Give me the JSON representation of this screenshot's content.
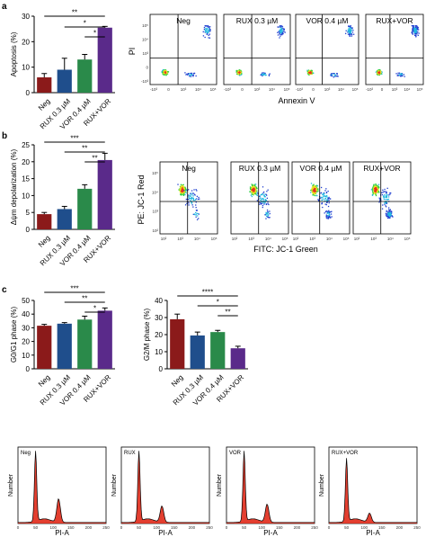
{
  "panel_labels": [
    "a",
    "b",
    "c"
  ],
  "chart_data": [
    {
      "id": "apoptosis",
      "type": "bar",
      "categories": [
        "Neg",
        "RUX 0.3 µM",
        "VOR 0.4 µM",
        "RUX+VOR"
      ],
      "values": [
        6,
        9,
        13,
        25.5
      ],
      "errors": [
        1.5,
        4.5,
        2,
        0.5
      ],
      "colors": [
        "#8b1a1a",
        "#1f4e8c",
        "#2a8a4a",
        "#5a2a8a"
      ],
      "ylabel": "Apoptosis (%)",
      "ylim": [
        0,
        30
      ],
      "yticks": [
        "0",
        "10",
        "20",
        "30"
      ],
      "significance": [
        "**",
        "*",
        "*"
      ]
    },
    {
      "id": "depolarization",
      "type": "bar",
      "categories": [
        "Neg",
        "RUX 0.3 µM",
        "VOR 0.4 µM",
        "RUX+VOR"
      ],
      "values": [
        4.5,
        6,
        12,
        20.5
      ],
      "errors": [
        0.5,
        0.8,
        1.2,
        2
      ],
      "colors": [
        "#8b1a1a",
        "#1f4e8c",
        "#2a8a4a",
        "#5a2a8a"
      ],
      "ylabel": "Δψm depolarization (%)",
      "ylim": [
        0,
        25
      ],
      "yticks": [
        "0",
        "5",
        "10",
        "15",
        "20",
        "25"
      ],
      "significance": [
        "***",
        "**",
        "**"
      ]
    },
    {
      "id": "g0g1",
      "type": "bar",
      "categories": [
        "Neg",
        "RUX 0.3 µM",
        "VOR 0.4 µM",
        "RUX+VOR"
      ],
      "values": [
        31.5,
        33,
        36,
        42.5
      ],
      "errors": [
        1,
        0.8,
        2.5,
        2
      ],
      "colors": [
        "#8b1a1a",
        "#1f4e8c",
        "#2a8a4a",
        "#5a2a8a"
      ],
      "ylabel": "G0/G1 phase (%)",
      "ylim": [
        0,
        50
      ],
      "yticks": [
        "0",
        "10",
        "20",
        "30",
        "40",
        "50"
      ],
      "significance": [
        "***",
        "**",
        "*"
      ]
    },
    {
      "id": "g2m",
      "type": "bar",
      "categories": [
        "Neg",
        "RUX 0.3 µM",
        "VOR 0.4 µM",
        "RUX+VOR"
      ],
      "values": [
        29,
        19.5,
        21.5,
        12
      ],
      "errors": [
        3,
        2,
        1,
        1.2
      ],
      "colors": [
        "#8b1a1a",
        "#1f4e8c",
        "#2a8a4a",
        "#5a2a8a"
      ],
      "ylabel": "G2/M phase (%)",
      "ylim": [
        0,
        40
      ],
      "yticks": [
        "0",
        "10",
        "20",
        "30",
        "40"
      ],
      "significance": [
        "****",
        "*",
        "**"
      ]
    }
  ],
  "flow_a": {
    "titles": [
      "Neg",
      "RUX 0.3 µM",
      "VOR 0.4 µM",
      "RUX+VOR"
    ],
    "xlabel": "Annexin V",
    "ylabel": "PI",
    "xticks": [
      "-10³",
      "0",
      "10³",
      "10⁴",
      "10⁵"
    ],
    "yticks": [
      "10⁵",
      "10⁴",
      "10³",
      "0",
      "-10³"
    ]
  },
  "flow_b": {
    "titles": [
      "Neg",
      "RUX 0.3 µM",
      "VOR 0.4 µM",
      "RUX+VOR"
    ],
    "xlabel": "FITC: JC-1 Green",
    "ylabel": "PE: JC-1 Red",
    "xticks": [
      "10²",
      "10³",
      "10⁴",
      "10⁵"
    ],
    "yticks": [
      "10⁵",
      "10⁴",
      "10³",
      "10²"
    ]
  },
  "histograms": {
    "labels": [
      "Neg",
      "RUX",
      "VOR",
      "RUX+VOR"
    ],
    "xlabel": "PI-A",
    "ylabel": "Number",
    "xticks": [
      "0",
      "50",
      "100",
      "150",
      "200",
      "250"
    ]
  }
}
